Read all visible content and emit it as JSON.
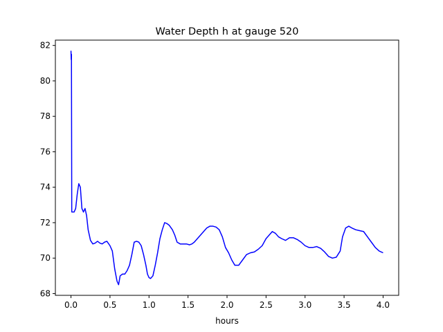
{
  "chart_data": {
    "type": "line",
    "title": "Water Depth h at gauge 520",
    "xlabel": "hours",
    "ylabel": "",
    "xlim": [
      -0.2,
      4.2
    ],
    "ylim": [
      67.9,
      82.3
    ],
    "xticks": [
      0.0,
      0.5,
      1.0,
      1.5,
      2.0,
      2.5,
      3.0,
      3.5,
      4.0
    ],
    "xtick_labels": [
      "0.0",
      "0.5",
      "1.0",
      "1.5",
      "2.0",
      "2.5",
      "3.0",
      "3.5",
      "4.0"
    ],
    "yticks": [
      68,
      70,
      72,
      74,
      76,
      78,
      80,
      82
    ],
    "ytick_labels": [
      "68",
      "70",
      "72",
      "74",
      "76",
      "78",
      "80",
      "82"
    ],
    "grid": false,
    "series": [
      {
        "color": "#0000ff",
        "x": [
          0.0,
          0.003,
          0.006,
          0.01,
          0.02,
          0.04,
          0.06,
          0.08,
          0.1,
          0.12,
          0.14,
          0.16,
          0.18,
          0.2,
          0.22,
          0.25,
          0.28,
          0.31,
          0.34,
          0.37,
          0.4,
          0.43,
          0.46,
          0.5,
          0.53,
          0.56,
          0.59,
          0.61,
          0.63,
          0.66,
          0.69,
          0.72,
          0.75,
          0.78,
          0.81,
          0.84,
          0.87,
          0.9,
          0.93,
          0.96,
          0.98,
          1.0,
          1.02,
          1.05,
          1.08,
          1.11,
          1.14,
          1.17,
          1.2,
          1.23,
          1.26,
          1.3,
          1.33,
          1.36,
          1.4,
          1.44,
          1.48,
          1.52,
          1.55,
          1.58,
          1.62,
          1.66,
          1.7,
          1.74,
          1.78,
          1.82,
          1.86,
          1.9,
          1.94,
          1.98,
          2.02,
          2.06,
          2.1,
          2.15,
          2.2,
          2.25,
          2.3,
          2.35,
          2.4,
          2.45,
          2.5,
          2.54,
          2.58,
          2.62,
          2.66,
          2.7,
          2.75,
          2.8,
          2.85,
          2.9,
          2.95,
          3.0,
          3.05,
          3.1,
          3.15,
          3.2,
          3.25,
          3.3,
          3.35,
          3.4,
          3.45,
          3.48,
          3.52,
          3.56,
          3.6,
          3.65,
          3.7,
          3.75,
          3.8,
          3.85,
          3.9,
          3.95,
          4.0
        ],
        "values": [
          81.7,
          81.2,
          81.5,
          72.6,
          72.6,
          72.6,
          72.8,
          73.6,
          74.2,
          74.0,
          72.8,
          72.6,
          72.8,
          72.4,
          71.6,
          71.0,
          70.8,
          70.85,
          70.95,
          70.85,
          70.8,
          70.9,
          70.95,
          70.7,
          70.4,
          69.4,
          68.7,
          68.5,
          69.0,
          69.1,
          69.1,
          69.3,
          69.6,
          70.2,
          70.9,
          70.95,
          70.9,
          70.7,
          70.2,
          69.6,
          69.1,
          68.9,
          68.85,
          69.0,
          69.6,
          70.3,
          71.1,
          71.6,
          72.0,
          71.95,
          71.85,
          71.6,
          71.3,
          70.9,
          70.8,
          70.8,
          70.8,
          70.75,
          70.8,
          70.9,
          71.1,
          71.3,
          71.5,
          71.7,
          71.8,
          71.8,
          71.75,
          71.6,
          71.2,
          70.6,
          70.3,
          69.9,
          69.6,
          69.6,
          69.9,
          70.2,
          70.3,
          70.35,
          70.5,
          70.7,
          71.1,
          71.3,
          71.5,
          71.4,
          71.2,
          71.1,
          71.0,
          71.15,
          71.15,
          71.05,
          70.9,
          70.7,
          70.6,
          70.6,
          70.65,
          70.55,
          70.35,
          70.1,
          70.0,
          70.05,
          70.4,
          71.2,
          71.7,
          71.8,
          71.7,
          71.6,
          71.55,
          71.5,
          71.2,
          70.9,
          70.6,
          70.4,
          70.3
        ]
      }
    ]
  }
}
